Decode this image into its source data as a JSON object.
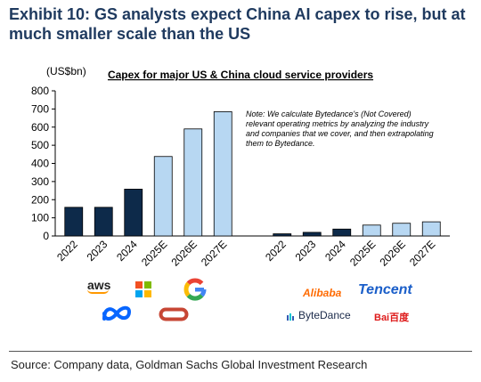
{
  "exhibit_title": "Exhibit 10: GS analysts expect China AI capex to rise, but at much smaller scale than the US",
  "source": "Source: Company data, Goldman Sachs Global Investment Research",
  "colors": {
    "actual": "#0d2a4a",
    "estimate": "#b7d7f2",
    "title": "#1f3a5f"
  },
  "chart_data": {
    "type": "bar",
    "title": "Capex for major US & China cloud service providers",
    "unit_label": "(US$bn)",
    "note": "Note: We calculate Bytedance's (Not Covered) relevant operating metrics by analyzing the industry and companies that we cover, and then extrapolating them to Bytedance.",
    "ylim": [
      0,
      800
    ],
    "yticks": [
      0,
      100,
      200,
      300,
      400,
      500,
      600,
      700,
      800
    ],
    "grid": false,
    "series": [
      {
        "group": "US",
        "categories": [
          "2022",
          "2023",
          "2024",
          "2025E",
          "2026E",
          "2027E"
        ],
        "values": [
          158,
          158,
          258,
          438,
          590,
          685
        ],
        "estimate": [
          false,
          false,
          false,
          true,
          true,
          true
        ]
      },
      {
        "group": "China",
        "categories": [
          "2022",
          "2023",
          "2024",
          "2025E",
          "2026E",
          "2027E"
        ],
        "values": [
          12,
          20,
          38,
          60,
          70,
          78
        ],
        "estimate": [
          false,
          false,
          false,
          true,
          true,
          true
        ]
      }
    ]
  },
  "logos": {
    "us": [
      "aws",
      "microsoft",
      "google",
      "meta",
      "oracle"
    ],
    "china": [
      {
        "name": "alibaba",
        "text": "Alibaba"
      },
      {
        "name": "tencent",
        "text": "Tencent"
      },
      {
        "name": "bytedance",
        "text": "ByteDance"
      },
      {
        "name": "baidu",
        "text": "Bai百度"
      }
    ]
  }
}
